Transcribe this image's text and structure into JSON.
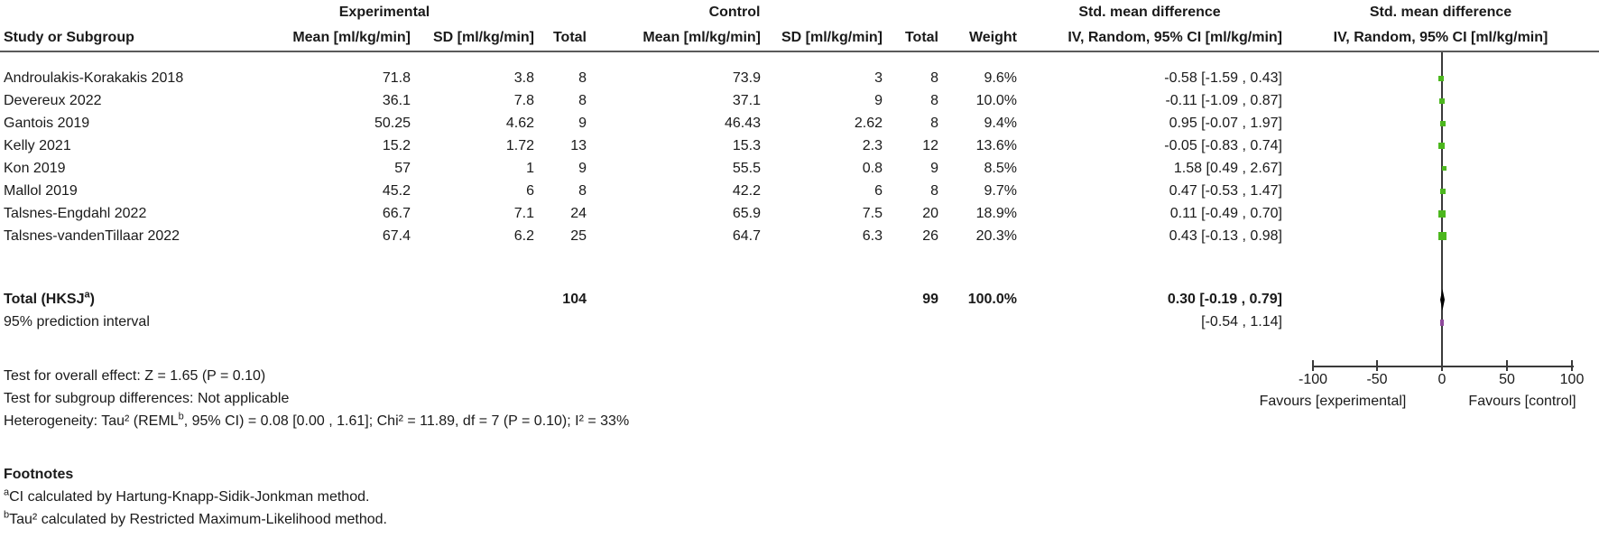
{
  "header": {
    "group_experimental": "Experimental",
    "group_control": "Control",
    "smd_label": "Std. mean difference",
    "ci_method_label": "IV, Random, 95% CI [ml/kg/min]",
    "columns": {
      "study": "Study or Subgroup",
      "mean": "Mean [ml/kg/min]",
      "sd": "SD [ml/kg/min]",
      "total": "Total",
      "weight": "Weight"
    }
  },
  "studies": [
    {
      "name": "Androulakis-Korakakis 2018",
      "exp_mean": "71.8",
      "exp_sd": "3.8",
      "exp_total": "8",
      "ctrl_mean": "73.9",
      "ctrl_sd": "3",
      "ctrl_total": "8",
      "weight": "9.6%",
      "smd_ci": "-0.58 [-1.59 , 0.43]",
      "smd": -0.58,
      "ci_low": -1.59,
      "ci_high": 0.43,
      "weight_pct": 9.6
    },
    {
      "name": "Devereux 2022",
      "exp_mean": "36.1",
      "exp_sd": "7.8",
      "exp_total": "8",
      "ctrl_mean": "37.1",
      "ctrl_sd": "9",
      "ctrl_total": "8",
      "weight": "10.0%",
      "smd_ci": "-0.11 [-1.09 , 0.87]",
      "smd": -0.11,
      "ci_low": -1.09,
      "ci_high": 0.87,
      "weight_pct": 10.0
    },
    {
      "name": "Gantois 2019",
      "exp_mean": "50.25",
      "exp_sd": "4.62",
      "exp_total": "9",
      "ctrl_mean": "46.43",
      "ctrl_sd": "2.62",
      "ctrl_total": "8",
      "weight": "9.4%",
      "smd_ci": "0.95 [-0.07 , 1.97]",
      "smd": 0.95,
      "ci_low": -0.07,
      "ci_high": 1.97,
      "weight_pct": 9.4
    },
    {
      "name": "Kelly 2021",
      "exp_mean": "15.2",
      "exp_sd": "1.72",
      "exp_total": "13",
      "ctrl_mean": "15.3",
      "ctrl_sd": "2.3",
      "ctrl_total": "12",
      "weight": "13.6%",
      "smd_ci": "-0.05 [-0.83 , 0.74]",
      "smd": -0.05,
      "ci_low": -0.83,
      "ci_high": 0.74,
      "weight_pct": 13.6
    },
    {
      "name": "Kon 2019",
      "exp_mean": "57",
      "exp_sd": "1",
      "exp_total": "9",
      "ctrl_mean": "55.5",
      "ctrl_sd": "0.8",
      "ctrl_total": "9",
      "weight": "8.5%",
      "smd_ci": "1.58 [0.49 , 2.67]",
      "smd": 1.58,
      "ci_low": 0.49,
      "ci_high": 2.67,
      "weight_pct": 8.5
    },
    {
      "name": "Mallol 2019",
      "exp_mean": "45.2",
      "exp_sd": "6",
      "exp_total": "8",
      "ctrl_mean": "42.2",
      "ctrl_sd": "6",
      "ctrl_total": "8",
      "weight": "9.7%",
      "smd_ci": "0.47 [-0.53 , 1.47]",
      "smd": 0.47,
      "ci_low": -0.53,
      "ci_high": 1.47,
      "weight_pct": 9.7
    },
    {
      "name": "Talsnes-Engdahl 2022",
      "exp_mean": "66.7",
      "exp_sd": "7.1",
      "exp_total": "24",
      "ctrl_mean": "65.9",
      "ctrl_sd": "7.5",
      "ctrl_total": "20",
      "weight": "18.9%",
      "smd_ci": "0.11 [-0.49 , 0.70]",
      "smd": 0.11,
      "ci_low": -0.49,
      "ci_high": 0.7,
      "weight_pct": 18.9
    },
    {
      "name": "Talsnes-vandenTillaar 2022",
      "exp_mean": "67.4",
      "exp_sd": "6.2",
      "exp_total": "25",
      "ctrl_mean": "64.7",
      "ctrl_sd": "6.3",
      "ctrl_total": "26",
      "weight": "20.3%",
      "smd_ci": "0.43 [-0.13 , 0.98]",
      "smd": 0.43,
      "ci_low": -0.13,
      "ci_high": 0.98,
      "weight_pct": 20.3
    }
  ],
  "total": {
    "label_main": "Total (HKSJ",
    "label_sup": "a",
    "label_close": ")",
    "exp_total": "104",
    "ctrl_total": "99",
    "weight": "100.0%",
    "smd_ci": "0.30 [-0.19 , 0.79]",
    "smd": 0.3,
    "ci_low": -0.19,
    "ci_high": 0.79
  },
  "prediction": {
    "label": "95% prediction interval",
    "ci": "[-0.54 , 1.14]",
    "low": -0.54,
    "high": 1.14
  },
  "stats": {
    "overall_effect": "Test for overall effect: Z = 1.65 (P = 0.10)",
    "subgroup": "Test for subgroup differences: Not applicable",
    "heterogeneity_pre": "Heterogeneity: Tau² (REML",
    "heterogeneity_sup": "b",
    "heterogeneity_post": ", 95% CI) = 0.08 [0.00 , 1.61]; Chi² = 11.89, df = 7 (P = 0.10); I² = 33%"
  },
  "footnotes": {
    "title": "Footnotes",
    "a_sup": "a",
    "a_text": "CI calculated by Hartung-Knapp-Sidik-Jonkman method.",
    "b_sup": "b",
    "b_text": "Tau² calculated by Restricted Maximum-Likelihood method."
  },
  "axis": {
    "ticks": [
      "-100",
      "-50",
      "0",
      "50",
      "100"
    ],
    "tick_values": [
      -100,
      -50,
      0,
      50,
      100
    ],
    "favours_left": "Favours [experimental]",
    "favours_right": "Favours [control]"
  },
  "colors": {
    "marker_green": "#4cb71e",
    "diamond_black": "#000000",
    "prediction_purple": "#8f4a9c",
    "line_gray": "#3a3a3a"
  },
  "chart_data": {
    "type": "forest",
    "title": "Std. mean difference, IV, Random, 95% CI [ml/kg/min]",
    "x_axis": {
      "range": [
        -100,
        100
      ],
      "ticks": [
        -100,
        -50,
        0,
        50,
        100
      ],
      "label_left": "Favours [experimental]",
      "label_right": "Favours [control]"
    },
    "studies": [
      {
        "name": "Androulakis-Korakakis 2018",
        "smd": -0.58,
        "ci": [
          -1.59,
          0.43
        ],
        "weight_pct": 9.6
      },
      {
        "name": "Devereux 2022",
        "smd": -0.11,
        "ci": [
          -1.09,
          0.87
        ],
        "weight_pct": 10.0
      },
      {
        "name": "Gantois 2019",
        "smd": 0.95,
        "ci": [
          -0.07,
          1.97
        ],
        "weight_pct": 9.4
      },
      {
        "name": "Kelly 2021",
        "smd": -0.05,
        "ci": [
          -0.83,
          0.74
        ],
        "weight_pct": 13.6
      },
      {
        "name": "Kon 2019",
        "smd": 1.58,
        "ci": [
          0.49,
          2.67
        ],
        "weight_pct": 8.5
      },
      {
        "name": "Mallol 2019",
        "smd": 0.47,
        "ci": [
          -0.53,
          1.47
        ],
        "weight_pct": 9.7
      },
      {
        "name": "Talsnes-Engdahl 2022",
        "smd": 0.11,
        "ci": [
          -0.49,
          0.7
        ],
        "weight_pct": 18.9
      },
      {
        "name": "Talsnes-vandenTillaar 2022",
        "smd": 0.43,
        "ci": [
          -0.13,
          0.98
        ],
        "weight_pct": 20.3
      }
    ],
    "total": {
      "label": "Total (HKSJ)",
      "smd": 0.3,
      "ci": [
        -0.19,
        0.79
      ],
      "weight_pct": 100.0
    },
    "prediction_interval": [
      -0.54,
      1.14
    ]
  }
}
